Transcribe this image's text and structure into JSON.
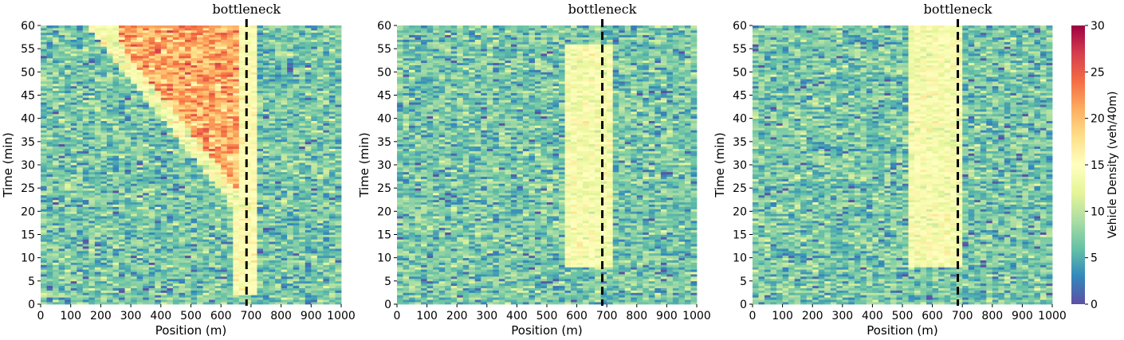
{
  "chart_data": {
    "type": "heatmap",
    "panels": [
      {
        "xlabel": "Position (m)",
        "ylabel": "Time (min)",
        "xlim": [
          0,
          1000
        ],
        "ylim": [
          0,
          60
        ],
        "xticks": [
          0,
          100,
          200,
          300,
          400,
          500,
          600,
          700,
          800,
          900,
          1000
        ],
        "yticks": [
          0,
          5,
          10,
          15,
          20,
          25,
          30,
          35,
          40,
          45,
          50,
          55,
          60
        ],
        "annotation": "bottleneck",
        "bottleneck_position": 685,
        "congestion": {
          "type": "queue",
          "bottleneck_start": 640,
          "bottleneck_end": 720,
          "queue_start_time": 21,
          "queue_front_x0": 700,
          "queue_front_speed_m_per_min": 12.5,
          "jam_density": 21,
          "bottleneck_density": 15
        },
        "background_density_mean": 7
      },
      {
        "xlabel": "Position (m)",
        "ylabel": "Time (min)",
        "xlim": [
          0,
          1000
        ],
        "ylim": [
          0,
          60
        ],
        "xticks": [
          0,
          100,
          200,
          300,
          400,
          500,
          600,
          700,
          800,
          900,
          1000
        ],
        "yticks": [
          0,
          5,
          10,
          15,
          20,
          25,
          30,
          35,
          40,
          45,
          50,
          55,
          60
        ],
        "annotation": "bottleneck",
        "bottleneck_position": 685,
        "congestion": {
          "type": "band",
          "bottleneck_start": 560,
          "bottleneck_end": 720,
          "time_start": 8,
          "time_end": 56,
          "band_density": 14
        },
        "background_density_mean": 7
      },
      {
        "xlabel": "Position (m)",
        "ylabel": "Time (min)",
        "xlim": [
          0,
          1000
        ],
        "ylim": [
          0,
          60
        ],
        "xticks": [
          0,
          100,
          200,
          300,
          400,
          500,
          600,
          700,
          800,
          900,
          1000
        ],
        "yticks": [
          0,
          5,
          10,
          15,
          20,
          25,
          30,
          35,
          40,
          45,
          50,
          55,
          60
        ],
        "annotation": "bottleneck",
        "bottleneck_position": 685,
        "congestion": {
          "type": "band",
          "bottleneck_start": 520,
          "bottleneck_end": 700,
          "time_start": 8,
          "time_end": 60,
          "band_density": 14
        },
        "background_density_mean": 7
      }
    ],
    "colorbar": {
      "label": "Vehicle Density (veh/40m)",
      "min": 0,
      "max": 30,
      "ticks": [
        0,
        5,
        10,
        15,
        20,
        25,
        30
      ],
      "colormap": [
        "#5e4fa2",
        "#3288bd",
        "#66c2a5",
        "#abdda4",
        "#e6f598",
        "#ffffbf",
        "#fee08b",
        "#fdae61",
        "#f46d43",
        "#d53e4f",
        "#9e0142"
      ]
    }
  }
}
